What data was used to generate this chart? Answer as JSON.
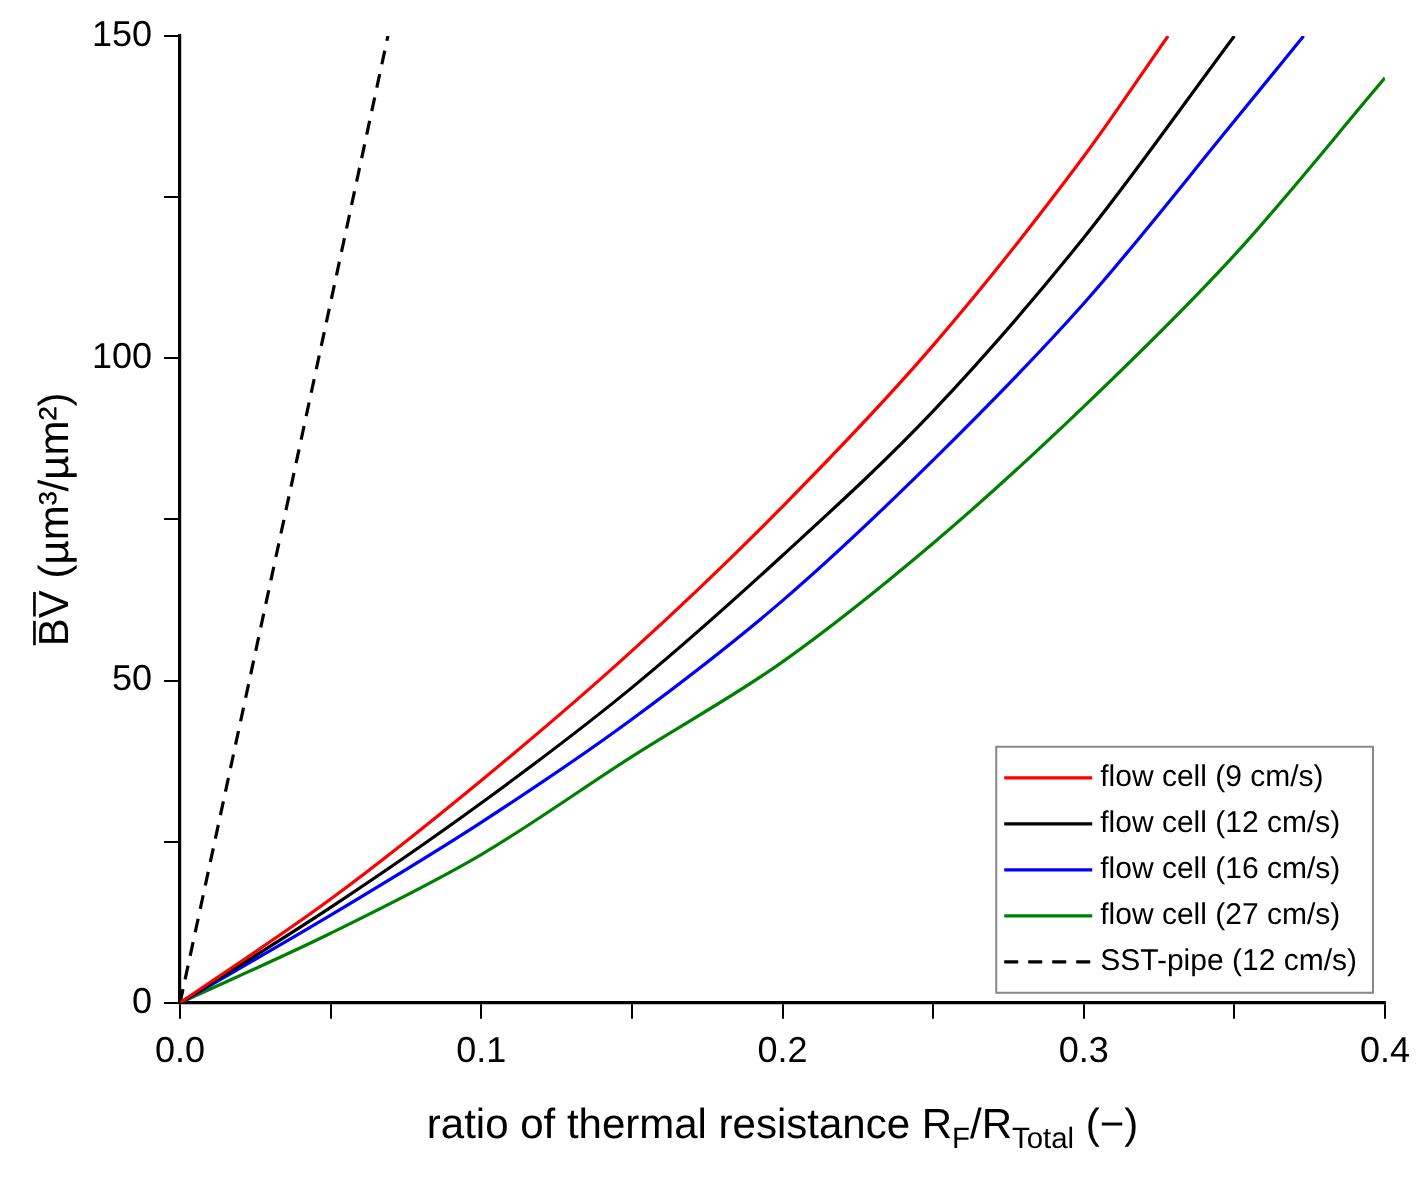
{
  "chart_data": {
    "type": "line",
    "xlabel": "ratio of thermal resistance R$_{F}$/R$_{Total}$ (−)",
    "ylabel": "B̅V̅ (µm³/µm²)",
    "xlim": [
      0,
      0.4
    ],
    "ylim": [
      0,
      150
    ],
    "xticks": [
      {
        "value": 0,
        "label": "0.0"
      },
      {
        "value": 0.05,
        "label": null
      },
      0.1,
      {
        "value": 0.15,
        "label": null
      },
      0.2,
      {
        "value": 0.25,
        "label": null
      },
      0.3,
      {
        "value": 0.35,
        "label": null
      },
      0.4
    ],
    "yticks": [
      0,
      {
        "value": 25,
        "label": null
      },
      50,
      {
        "value": 75,
        "label": null
      },
      100,
      {
        "value": 125,
        "label": null
      },
      150
    ],
    "grid": false,
    "legend": "bottom right",
    "marker": "none",
    "series": [
      {
        "name": "flow cell (9 cm/s)",
        "color": "#ff0000",
        "x": [
          0,
          0.05,
          0.1,
          0.15,
          0.2,
          0.25,
          0.3,
          0.328
        ],
        "values": [
          0,
          16.1,
          34.5,
          54.6,
          77,
          102,
          131.3,
          150
        ]
      },
      {
        "name": "flow cell (12 cm/s)",
        "color": "#000000",
        "x": [
          0,
          0.05,
          0.1,
          0.15,
          0.2,
          0.25,
          0.3,
          0.35
        ],
        "values": [
          0,
          14.8,
          31,
          48.9,
          69.4,
          91.8,
          118.7,
          150
        ]
      },
      {
        "name": "flow cell (16 cm/s)",
        "color": "#0000ff",
        "x": [
          0,
          0.05,
          0.1,
          0.15,
          0.2,
          0.25,
          0.3,
          0.35,
          0.373
        ],
        "values": [
          0,
          13.6,
          28,
          44,
          62.4,
          84.2,
          108.5,
          136.8,
          150
        ]
      },
      {
        "name": "flow cell (27 cm/s)",
        "color": "#008000",
        "x": [
          0,
          0.05,
          0.1,
          0.15,
          0.2,
          0.25,
          0.3,
          0.35,
          0.4
        ],
        "values": [
          0,
          10.8,
          23,
          38.2,
          52.9,
          71.3,
          92.5,
          116,
          143.5
        ]
      },
      {
        "name": "SST-pipe (12 cm/s)",
        "color": "#000000",
        "line_style": "dashed",
        "x": [
          0,
          0.069
        ],
        "values": [
          0,
          150
        ]
      }
    ]
  }
}
